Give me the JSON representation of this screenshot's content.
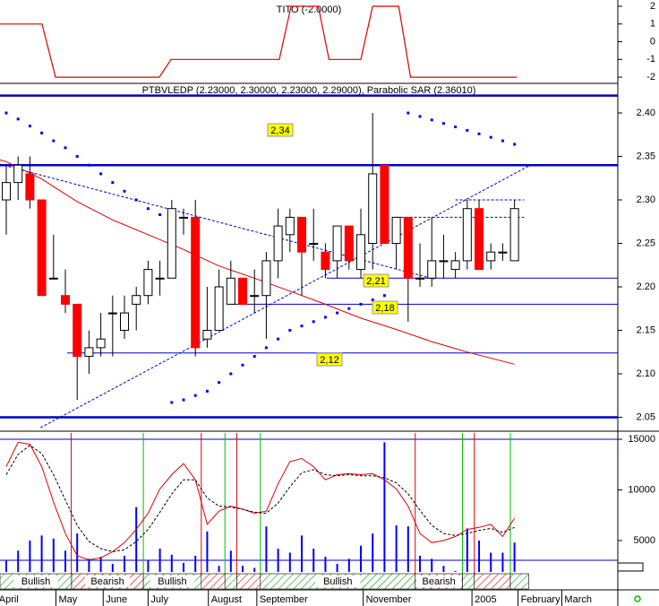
{
  "chart_data": [
    {
      "type": "line",
      "title": "TITO (-2.0000)",
      "color": "#e00000",
      "x": [
        -0.53,
        3.03,
        4.17,
        12.95,
        13.94,
        23.1,
        24.1,
        26.4,
        27.3,
        30,
        31,
        33.2,
        34.2,
        43.2
      ],
      "values": [
        1,
        1,
        -2,
        -2,
        -1,
        -1,
        2,
        2,
        -1,
        -1,
        2,
        2,
        -2,
        -2
      ],
      "xlim": [
        -0.53,
        51.74
      ],
      "ylim": [
        -2.3,
        2.354
      ],
      "yticks": [
        2,
        1,
        0,
        -1,
        -2
      ]
    },
    {
      "type": "candlestick",
      "title": "PTBVLEDP (2.23000, 2.30000, 2.23000, 2.29000), Parabolic SAR (2.36010)",
      "categories": [
        null,
        null,
        null,
        null,
        null,
        null,
        null,
        null,
        null,
        null,
        null,
        null,
        null,
        null,
        null,
        null,
        null,
        null,
        null,
        null,
        null,
        null,
        null,
        null,
        null,
        null,
        null,
        null,
        null,
        null,
        null,
        null,
        null,
        null,
        null,
        null,
        null,
        null,
        null,
        null,
        null,
        null,
        null,
        null
      ],
      "open": [
        2.3,
        2.32,
        2.33,
        2.3,
        2.21,
        2.19,
        2.18,
        2.12,
        2.13,
        2.17,
        2.15,
        2.18,
        2.19,
        2.21,
        2.21,
        2.28,
        2.28,
        2.14,
        2.15,
        2.18,
        2.21,
        2.19,
        2.19,
        2.23,
        2.26,
        2.28,
        2.25,
        2.24,
        2.23,
        2.27,
        2.22,
        2.25,
        2.34,
        2.25,
        2.28,
        2.21,
        2.21,
        2.23,
        2.22,
        2.23,
        2.29,
        2.23,
        2.24,
        2.23
      ],
      "high": [
        2.34,
        2.35,
        2.35,
        2.3,
        2.26,
        2.22,
        2.18,
        2.15,
        2.17,
        2.19,
        2.19,
        2.2,
        2.23,
        2.23,
        2.3,
        2.29,
        2.3,
        2.2,
        2.22,
        2.23,
        2.21,
        2.22,
        2.24,
        2.29,
        2.29,
        2.28,
        2.29,
        2.25,
        2.27,
        2.27,
        2.29,
        2.4,
        2.34,
        2.28,
        2.28,
        2.25,
        2.28,
        2.26,
        2.24,
        2.3,
        2.3,
        2.25,
        2.25,
        2.3
      ],
      "low": [
        2.26,
        2.3,
        2.29,
        2.19,
        2.21,
        2.17,
        2.07,
        2.1,
        2.12,
        2.12,
        2.14,
        2.15,
        2.18,
        2.19,
        2.21,
        2.26,
        2.12,
        2.13,
        2.15,
        2.18,
        2.18,
        2.17,
        2.14,
        2.21,
        2.24,
        2.19,
        2.23,
        2.21,
        2.21,
        2.22,
        2.21,
        2.22,
        2.25,
        2.22,
        2.16,
        2.2,
        2.2,
        2.21,
        2.21,
        2.22,
        2.22,
        2.22,
        2.23,
        2.23
      ],
      "close": [
        2.32,
        2.34,
        2.3,
        2.19,
        2.21,
        2.18,
        2.12,
        2.13,
        2.14,
        2.17,
        2.17,
        2.19,
        2.22,
        2.21,
        2.29,
        2.28,
        2.13,
        2.15,
        2.2,
        2.21,
        2.18,
        2.19,
        2.23,
        2.27,
        2.28,
        2.24,
        2.25,
        2.22,
        2.27,
        2.23,
        2.26,
        2.33,
        2.25,
        2.28,
        2.21,
        2.21,
        2.23,
        2.23,
        2.23,
        2.29,
        2.22,
        2.24,
        2.24,
        2.29
      ],
      "up_color": "#ffffff",
      "down_color": "#ff0000",
      "moving_average": {
        "color": "#e00000",
        "x": [
          -0.53,
          0,
          3,
          6,
          9,
          12,
          15,
          18,
          21,
          24,
          27,
          30,
          33,
          36,
          39,
          43
        ],
        "values": [
          2.346,
          2.344,
          2.324,
          2.298,
          2.277,
          2.26,
          2.243,
          2.224,
          2.21,
          2.195,
          2.18,
          2.164,
          2.151,
          2.137,
          2.125,
          2.111
        ]
      },
      "sar": {
        "color": "#0000ff",
        "x": [
          0,
          1,
          2,
          3,
          4,
          5,
          6,
          7,
          8,
          9,
          10,
          11,
          12,
          13,
          14,
          15,
          16,
          17,
          18,
          19,
          20,
          21,
          22,
          23,
          24,
          25,
          26,
          27,
          28,
          29,
          30,
          31,
          32,
          34,
          35,
          36,
          37,
          38,
          39,
          40,
          41,
          42,
          43
        ],
        "values": [
          2.4,
          2.393,
          2.385,
          2.377,
          2.368,
          2.36,
          2.35,
          2.34,
          2.33,
          2.32,
          2.31,
          2.3,
          2.29,
          2.283,
          2.067,
          2.07,
          2.075,
          2.08,
          2.09,
          2.1,
          2.11,
          2.12,
          2.13,
          2.14,
          2.15,
          2.155,
          2.16,
          2.165,
          2.17,
          2.175,
          2.18,
          2.185,
          2.19,
          2.4,
          2.396,
          2.392,
          2.388,
          2.384,
          2.38,
          2.376,
          2.372,
          2.368,
          2.364
        ]
      },
      "line_color": "#0000cc",
      "lines": [
        {
          "x": [
            -0.53,
            51.74
          ],
          "values": [
            2.42,
            2.42
          ],
          "style": "solid",
          "thick": true
        },
        {
          "x": [
            -0.53,
            51.74
          ],
          "values": [
            2.34,
            2.34
          ],
          "style": "solid",
          "thick": true
        },
        {
          "x": [
            -0.53,
            51.74
          ],
          "values": [
            2.05,
            2.05
          ],
          "style": "solid",
          "thick": true
        },
        {
          "x": [
            27.1,
            51.74
          ],
          "values": [
            2.21,
            2.21
          ],
          "style": "solid",
          "thick": false
        },
        {
          "x": [
            19.2,
            51.74
          ],
          "values": [
            2.18,
            2.18
          ],
          "style": "solid",
          "thick": false
        },
        {
          "x": [
            5.15,
            51.74
          ],
          "values": [
            2.124,
            2.124
          ],
          "style": "solid",
          "thick": false
        },
        {
          "x": [
            33,
            43.8
          ],
          "values": [
            2.28,
            2.28
          ],
          "style": "dashed",
          "thick": false
        },
        {
          "x": [
            38,
            43.8
          ],
          "values": [
            2.3,
            2.3
          ],
          "style": "dashed",
          "thick": false
        },
        {
          "x": [
            -0.53,
            36.2
          ],
          "values": [
            2.341,
            2.209
          ],
          "style": "dashed",
          "thick": false
        },
        {
          "x": [
            2.9,
            44.2
          ],
          "values": [
            2.038,
            2.339
          ],
          "style": "dashed",
          "thick": false
        }
      ],
      "annotations": [
        "2,34",
        "2,21",
        "2,18",
        "2,12"
      ],
      "xlim": [
        -0.53,
        51.74
      ],
      "ylim": [
        2.035,
        2.432
      ],
      "yticks": [
        {
          "value": 2.4,
          "label": "2.40"
        },
        {
          "value": 2.35,
          "label": "2.35"
        },
        {
          "value": 2.3,
          "label": "2.30"
        },
        {
          "value": 2.25,
          "label": "2.25"
        },
        {
          "value": 2.2,
          "label": "2.20"
        },
        {
          "value": 2.15,
          "label": "2.15"
        },
        {
          "value": 2.1,
          "label": "2.10"
        },
        {
          "value": 2.05,
          "label": "2.05"
        }
      ]
    },
    {
      "type": "volume-oscillator",
      "volume": {
        "color": "#0000ff",
        "values": [
          3000,
          4000,
          5000,
          5500,
          5200,
          4000,
          5700,
          3200,
          3400,
          2700,
          3500,
          8300,
          3100,
          4200,
          3600,
          2800,
          3500,
          5900,
          2500,
          4000,
          2500,
          2300,
          6400,
          4200,
          3800,
          5500,
          4200,
          3400,
          2700,
          3200,
          4500,
          5700,
          14700,
          6500,
          6400,
          3500,
          3200,
          2500,
          2000,
          6200,
          5000,
          3800,
          3800,
          4800
        ]
      },
      "series": [
        {
          "color": "#e00000",
          "dashed": false,
          "values": [
            12300,
            14700,
            14500,
            12300,
            8800,
            5700,
            3500,
            3100,
            3300,
            3900,
            4800,
            6100,
            7700,
            10100,
            11500,
            12600,
            11000,
            6600,
            7900,
            8400,
            8100,
            7700,
            7900,
            10600,
            12800,
            13100,
            12300,
            11000,
            11500,
            11600,
            11500,
            11600,
            11000,
            10100,
            8400,
            5700,
            4800,
            5000,
            5400,
            6100,
            6300,
            6600,
            5400,
            7200
          ]
        },
        {
          "color": "#000000",
          "dashed": true,
          "values": [
            11500,
            13500,
            14400,
            13600,
            11500,
            9000,
            6500,
            4900,
            4200,
            3900,
            4100,
            4900,
            6100,
            7800,
            9600,
            11000,
            11000,
            9200,
            8400,
            8300,
            8100,
            7800,
            7700,
            8700,
            10300,
            11700,
            12000,
            11500,
            11400,
            11500,
            11400,
            11400,
            11200,
            10700,
            9600,
            8000,
            6500,
            5700,
            5500,
            5700,
            6000,
            6200,
            5800,
            6300
          ]
        }
      ],
      "levels": [
        15000,
        3050
      ],
      "buy_signals": {
        "color": "#00c000",
        "x": [
          11.6,
          18.5,
          21.5,
          38.6,
          42.65
        ]
      },
      "sell_signals": {
        "color": "#e00000",
        "x": [
          5.5,
          16.5,
          19.5,
          34.6,
          39.6
        ]
      },
      "segments": [
        {
          "from": -0.53,
          "to": 5.53,
          "color": "#00a000",
          "label": "Bullish"
        },
        {
          "from": 5.53,
          "to": 11.6,
          "color": "#e00000",
          "label": "Bearish"
        },
        {
          "from": 11.6,
          "to": 16.5,
          "color": "#00a000",
          "label": "Bullish"
        },
        {
          "from": 16.5,
          "to": 18.5,
          "color": "#e00000"
        },
        {
          "from": 18.5,
          "to": 19.5,
          "color": "#00a000"
        },
        {
          "from": 19.5,
          "to": 21.5,
          "color": "#e00000"
        },
        {
          "from": 21.5,
          "to": 34.6,
          "color": "#00a000",
          "label": "Bullish"
        },
        {
          "from": 34.6,
          "to": 38.6,
          "color": "#e00000",
          "label": "Bearish"
        },
        {
          "from": 38.6,
          "to": 39.6,
          "color": "#00a000"
        },
        {
          "from": 39.6,
          "to": 42.65,
          "color": "#e00000"
        },
        {
          "from": 42.65,
          "to": 44.2,
          "color": "#00a000"
        }
      ],
      "xlim": [
        -0.53,
        51.74
      ],
      "ylim": [
        1903,
        15619
      ],
      "yticks": [
        15000,
        10000,
        5000
      ],
      "xticks": [
        {
          "value": -0.85,
          "label": "April"
        },
        {
          "value": 4.2,
          "label": "May"
        },
        {
          "value": 8.2,
          "label": "June"
        },
        {
          "value": 12,
          "label": "July"
        },
        {
          "value": 17.1,
          "label": "August"
        },
        {
          "value": 21.2,
          "label": "September"
        },
        {
          "value": 30.2,
          "label": "November"
        },
        {
          "value": 39.4,
          "label": "2005"
        },
        {
          "value": 43.3,
          "label": "February"
        },
        {
          "value": 47,
          "label": "March"
        }
      ]
    }
  ]
}
